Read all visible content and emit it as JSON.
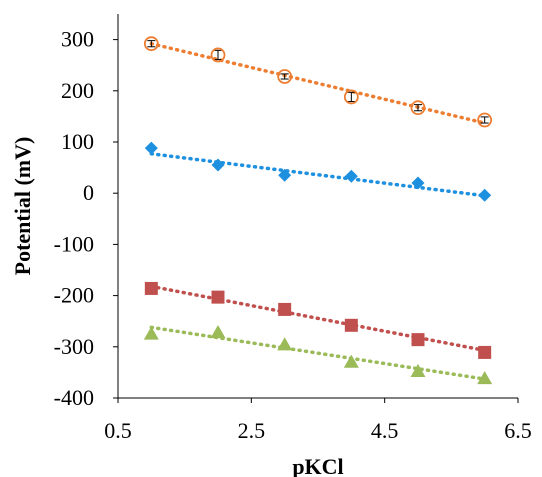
{
  "chart_data": {
    "type": "scatter",
    "title": "",
    "xlabel": "pKCl",
    "ylabel": "Potential (mV)",
    "xlim": [
      0.5,
      6.5
    ],
    "ylim": [
      -400,
      350
    ],
    "x_ticks": [
      0.5,
      2.5,
      4.5,
      6.5
    ],
    "x_tick_labels": [
      "0.5",
      "2.5",
      "4.5",
      "6.5"
    ],
    "y_ticks": [
      300,
      200,
      100,
      0,
      -100,
      -200,
      -300,
      -400
    ],
    "y_tick_labels": [
      "300",
      "200",
      "100",
      "0",
      "-100",
      "-200",
      "-300",
      "-400"
    ],
    "grid": false,
    "legend": false,
    "series": [
      {
        "marker": "open-circle",
        "color": "#ED7D31",
        "x": [
          1,
          2,
          3,
          4,
          5,
          6
        ],
        "y": [
          292,
          270,
          228,
          188,
          167,
          143
        ],
        "error": [
          6,
          9,
          5,
          9,
          6,
          6
        ],
        "trendline": {
          "y_start": 292,
          "y_end": 137
        }
      },
      {
        "marker": "diamond",
        "color": "#1E90E0",
        "x": [
          1,
          2,
          3,
          4,
          5,
          6
        ],
        "y": [
          88,
          55,
          35,
          33,
          20,
          -4
        ],
        "trendline": {
          "y_start": 77,
          "y_end": -5
        }
      },
      {
        "marker": "square",
        "color": "#C0504D",
        "x": [
          1,
          2,
          3,
          4,
          5,
          6
        ],
        "y": [
          -186,
          -203,
          -227,
          -258,
          -286,
          -311
        ],
        "trendline": {
          "y_start": -182,
          "y_end": -307
        }
      },
      {
        "marker": "triangle",
        "color": "#9BBB59",
        "x": [
          1,
          2,
          3,
          4,
          5,
          6
        ],
        "y": [
          -275,
          -272,
          -296,
          -330,
          -348,
          -362
        ],
        "trendline": {
          "y_start": -262,
          "y_end": -363
        }
      }
    ]
  }
}
